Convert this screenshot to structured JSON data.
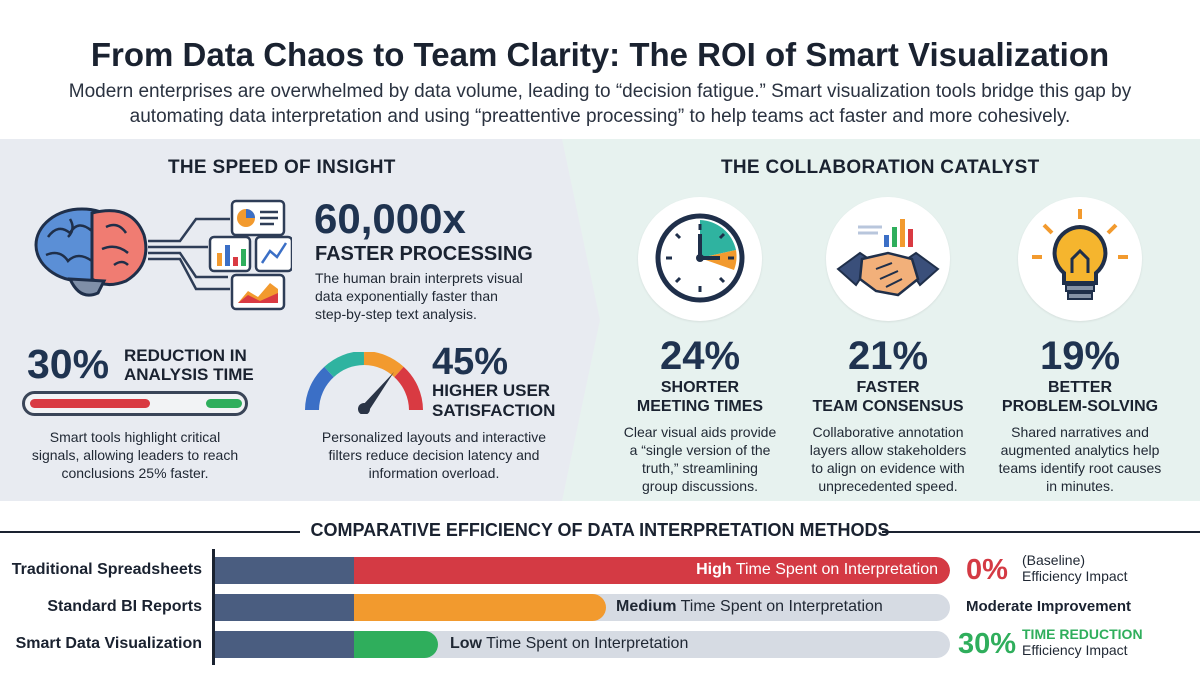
{
  "header": {
    "title": "From Data Chaos to Team Clarity: The ROI of Smart Visualization",
    "subtitle_line1": "Modern enterprises are overwhelmed by data volume, leading to “decision fatigue.” Smart visualization tools bridge this gap by",
    "subtitle_line2": "automating data interpretation and using “preattentive processing” to help teams act faster and more cohesively."
  },
  "speed": {
    "heading": "THE SPEED OF INSIGHT",
    "processing": {
      "value": "60,000x",
      "label": "FASTER PROCESSING",
      "desc_line1": "The human brain interprets visual",
      "desc_line2": "data exponentially faster than",
      "desc_line3": "step-by-step text analysis."
    },
    "analysis": {
      "value": "30%",
      "label_line1": "REDUCTION IN",
      "label_line2": "ANALYSIS TIME",
      "desc_line1": "Smart tools highlight critical",
      "desc_line2": "signals, allowing leaders to reach",
      "desc_line3": "conclusions 25% faster."
    },
    "satisfaction": {
      "value": "45%",
      "label_line1": "HIGHER USER",
      "label_line2": "SATISFACTION",
      "desc_line1": "Personalized layouts and interactive",
      "desc_line2": "filters reduce decision latency and",
      "desc_line3": "information overload."
    }
  },
  "collab": {
    "heading": "THE COLLABORATION CATALYST",
    "items": [
      {
        "value": "24%",
        "label_line1": "SHORTER",
        "label_line2": "MEETING TIMES",
        "desc_line1": "Clear visual aids provide",
        "desc_line2": "a “single version of the",
        "desc_line3": "truth,” streamlining",
        "desc_line4": "group discussions."
      },
      {
        "value": "21%",
        "label_line1": "FASTER",
        "label_line2": "TEAM CONSENSUS",
        "desc_line1": "Collaborative annotation",
        "desc_line2": "layers allow stakeholders",
        "desc_line3": "to align on evidence with",
        "desc_line4": "unprecedented speed."
      },
      {
        "value": "19%",
        "label_line1": "BETTER",
        "label_line2": "PROBLEM-SOLVING",
        "desc_line1": "Shared narratives and",
        "desc_line2": "augmented analytics help",
        "desc_line3": "teams identify root causes",
        "desc_line4": "in minutes."
      }
    ]
  },
  "comparison": {
    "heading": "COMPARATIVE EFFICIENCY OF DATA INTERPRETATION METHODS",
    "rows": [
      {
        "label": "Traditional Spreadsheets",
        "level": "High",
        "suffix": " Time Spent on Interpretation",
        "color": "#d43a44",
        "impact_pct": "0%",
        "impact_line1": "(Baseline)",
        "impact_line2": "Efficiency Impact",
        "impact_color": "#d43a44"
      },
      {
        "label": "Standard BI Reports",
        "level": "Medium",
        "suffix": " Time Spent on Interpretation",
        "color": "#f29a2e",
        "impact_text": "Moderate Improvement"
      },
      {
        "label": "Smart Data Visualization",
        "level": "Low",
        "suffix": " Time Spent on Interpretation",
        "color": "#2fae5c",
        "impact_pct": "30%",
        "impact_line1": "TIME REDUCTION",
        "impact_line2": "Efficiency Impact",
        "impact_color": "#2fae5c"
      }
    ]
  },
  "colors": {
    "accent_red": "#d43a44",
    "accent_orange": "#f29a2e",
    "accent_green": "#2fae5c",
    "navy": "#1f3350"
  },
  "icons": [
    "brain-icon",
    "chart-cards-icon",
    "gauge-icon",
    "stopwatch-icon",
    "handshake-icon",
    "lightbulb-icon"
  ]
}
